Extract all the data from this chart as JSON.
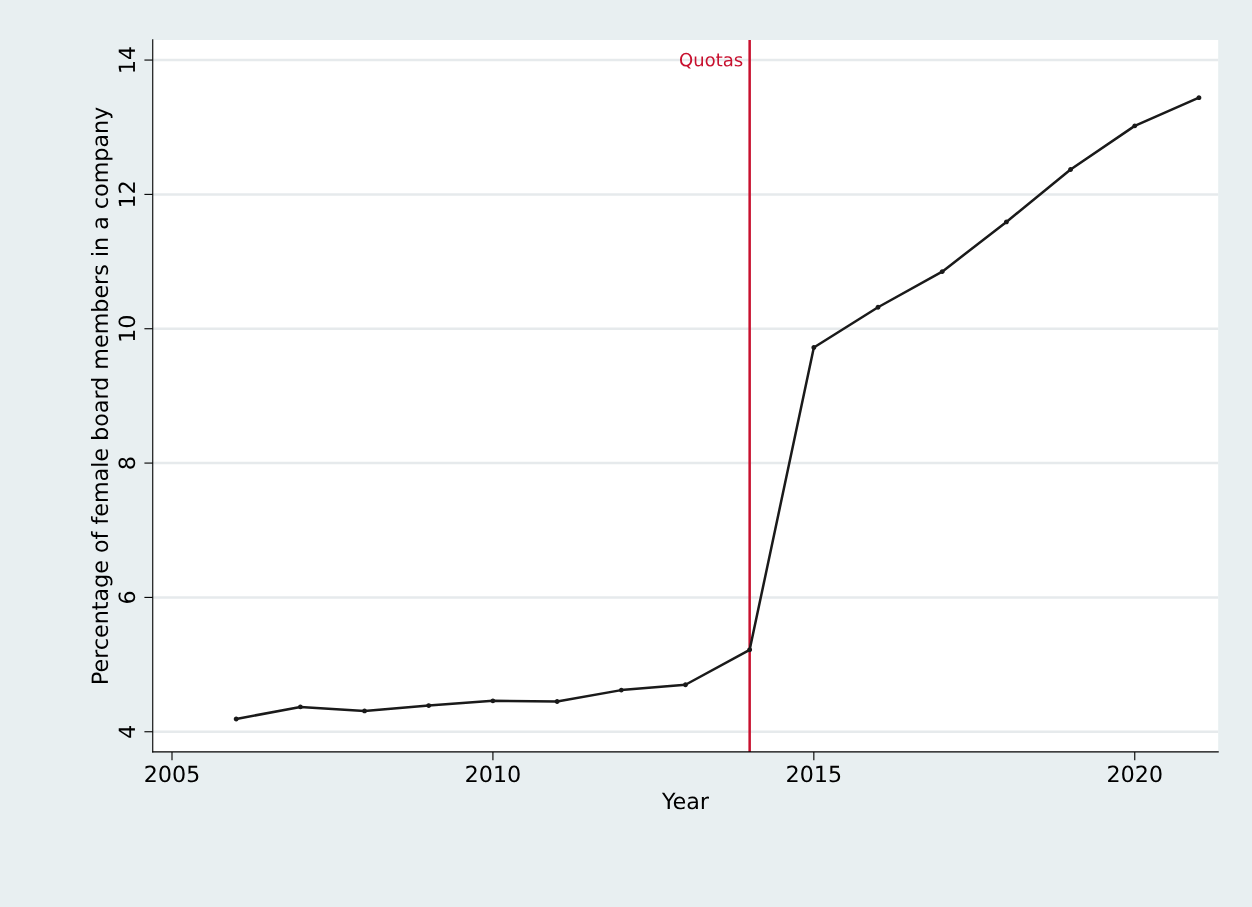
{
  "chart_data": {
    "type": "line",
    "xlabel": "Year",
    "ylabel": "Percentage of female board members in a company",
    "x": [
      2006,
      2007,
      2008,
      2009,
      2010,
      2011,
      2012,
      2013,
      2014,
      2015,
      2016,
      2017,
      2018,
      2019,
      2020,
      2021
    ],
    "series": [
      {
        "color": "#1a1a1a",
        "values": [
          4.19,
          4.37,
          4.31,
          4.39,
          4.46,
          4.45,
          4.62,
          4.7,
          5.22,
          9.72,
          10.32,
          10.85,
          11.59,
          12.37,
          13.02,
          13.44
        ]
      }
    ],
    "xlim": [
      2004.7,
      2021.3
    ],
    "xticks": [
      2005,
      2010,
      2015,
      2020
    ],
    "ylim": [
      3.7,
      14.3
    ],
    "yticks": [
      4,
      6,
      8,
      10,
      12,
      14
    ],
    "ref_lines": [
      {
        "axis": "x",
        "value": 2014,
        "label": "Quotas",
        "color": "#c8102e"
      }
    ],
    "grid": "y",
    "marker": "circle",
    "line_style": "solid"
  }
}
